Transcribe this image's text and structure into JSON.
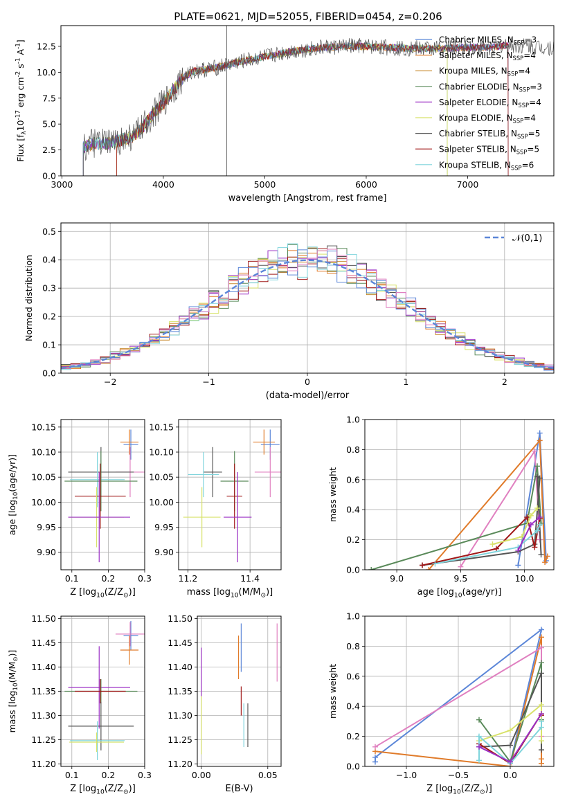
{
  "title": "PLATE=0621, MJD=52055, FIBERID=0454, z=0.206",
  "colors": {
    "chabrier_miles": "#5b86d8",
    "salpeter_miles": "#e07b2a",
    "kroupa_miles": "#c88a2e",
    "chabrier_elodie": "#5a8a5a",
    "salpeter_elodie": "#9b2fc4",
    "kroupa_elodie": "#d8e26a",
    "chabrier_stelib": "#555555",
    "salpeter_stelib": "#a01818",
    "kroupa_stelib": "#7fd4dc",
    "pink": "#e080c0",
    "gaussian": "#5b86d8"
  },
  "legend_entries": [
    {
      "name": "Chabrier MILES, N$_{SSP}$=3",
      "color": "#5b86d8"
    },
    {
      "name": "Salpeter MILES, N$_{SSP}$=4",
      "color": "#e07b2a"
    },
    {
      "name": "Kroupa MILES, N$_{SSP}$=4",
      "color": "#c88a2e"
    },
    {
      "name": "Chabrier ELODIE, N$_{SSP}$=3",
      "color": "#5a8a5a"
    },
    {
      "name": "Salpeter ELODIE, N$_{SSP}$=4",
      "color": "#9b2fc4"
    },
    {
      "name": "Kroupa ELODIE, N$_{SSP}$=4",
      "color": "#d8e26a"
    },
    {
      "name": "Chabrier STELIB, N$_{SSP}$=5",
      "color": "#555555"
    },
    {
      "name": "Salpeter STELIB, N$_{SSP}$=5",
      "color": "#a01818"
    },
    {
      "name": "Kroupa STELIB, N$_{SSP}$=6",
      "color": "#7fd4dc"
    }
  ],
  "chart_data": [
    {
      "id": "spectrum",
      "type": "line",
      "xlabel": "wavelength [Angstrom, rest frame]",
      "ylabel": "Flux [f$_\\lambda$10$^{-17}$ erg cm$^{-2}$ s$^{-1}$ A$^{-1}$]",
      "xlim": [
        2990,
        7850
      ],
      "ylim": [
        0,
        14.5
      ],
      "xticks": [
        3000,
        4000,
        5000,
        6000,
        7000
      ],
      "yticks": [
        0.0,
        2.5,
        5.0,
        7.5,
        10.0,
        12.5
      ],
      "continuum_wavelength": [
        3210,
        3300,
        3500,
        3700,
        3800,
        3900,
        4000,
        4100,
        4200,
        4300,
        4500,
        4700,
        5000,
        5200,
        5400,
        5600,
        5800,
        6000,
        6200,
        6400,
        6600,
        6800,
        7000,
        7200,
        7400,
        7600,
        7850
      ],
      "continuum_flux": [
        2.7,
        3.1,
        3.2,
        3.8,
        4.7,
        6.0,
        7.0,
        8.3,
        9.5,
        10.1,
        10.4,
        10.9,
        11.5,
        11.9,
        12.2,
        12.4,
        12.5,
        12.5,
        12.4,
        12.3,
        12.3,
        12.3,
        12.4,
        12.4,
        12.6,
        12.5,
        12.4
      ],
      "grid": false,
      "legend": "upper right"
    },
    {
      "id": "residuals",
      "type": "histogram",
      "xlabel": "(data-model)/error",
      "ylabel": "Normed distribution",
      "xlim": [
        -2.5,
        2.5
      ],
      "ylim": [
        0,
        0.53
      ],
      "xticks": [
        -2,
        -1,
        0,
        1,
        2
      ],
      "yticks": [
        0.0,
        0.1,
        0.2,
        0.3,
        0.4,
        0.5
      ],
      "legend_label": "$\\mathcal{N}(0,1)$",
      "grid": true,
      "bin_width": 0.1,
      "legend": "upper right"
    },
    {
      "id": "age_vs_Z",
      "type": "errorbar",
      "xlabel": "Z [log$_{10}$(Z/Z$_\\odot$)]",
      "ylabel": "age  [log$_{10}$(age/yr)]",
      "xlim": [
        0.07,
        0.3
      ],
      "ylim": [
        9.865,
        10.165
      ],
      "xticks": [
        0.1,
        0.2,
        0.3
      ],
      "yticks": [
        9.9,
        9.95,
        10.0,
        10.05,
        10.1,
        10.15
      ],
      "points": [
        {
          "x": 0.262,
          "y": 10.115,
          "xerr": 0.02,
          "yerr": 0.03,
          "color": "#5b86d8"
        },
        {
          "x": 0.258,
          "y": 10.12,
          "xerr": 0.025,
          "yerr": 0.025,
          "color": "#e07b2a"
        },
        {
          "x": 0.26,
          "y": 10.06,
          "xerr": 0.04,
          "yerr": 0.05,
          "color": "#e080c0"
        },
        {
          "x": 0.18,
          "y": 10.06,
          "xerr": 0.09,
          "yerr": 0.05,
          "color": "#555555"
        },
        {
          "x": 0.17,
          "y": 10.045,
          "xerr": 0.075,
          "yerr": 0.055,
          "color": "#7fd4dc"
        },
        {
          "x": 0.18,
          "y": 10.042,
          "xerr": 0.1,
          "yerr": 0.06,
          "color": "#5a8a5a"
        },
        {
          "x": 0.178,
          "y": 10.012,
          "xerr": 0.07,
          "yerr": 0.065,
          "color": "#a01818"
        },
        {
          "x": 0.168,
          "y": 9.97,
          "xerr": 0.075,
          "yerr": 0.06,
          "color": "#d8e26a"
        },
        {
          "x": 0.175,
          "y": 9.97,
          "xerr": 0.085,
          "yerr": 0.09,
          "color": "#9b2fc4"
        }
      ]
    },
    {
      "id": "age_vs_mass",
      "type": "errorbar",
      "xlabel": "mass [log$_{10}$(M/M$_\\odot$)]",
      "xlim": [
        11.17,
        11.5
      ],
      "ylim": [
        9.865,
        10.165
      ],
      "xticks": [
        11.2,
        11.4
      ],
      "yticks": [
        9.9,
        9.95,
        10.0,
        10.05,
        10.1,
        10.15
      ],
      "points": [
        {
          "x": 11.465,
          "y": 10.115,
          "xerr": 0.03,
          "yerr": 0.03,
          "color": "#5b86d8"
        },
        {
          "x": 11.445,
          "y": 10.12,
          "xerr": 0.035,
          "yerr": 0.025,
          "color": "#e07b2a"
        },
        {
          "x": 11.465,
          "y": 10.06,
          "xerr": 0.05,
          "yerr": 0.05,
          "color": "#e080c0"
        },
        {
          "x": 11.28,
          "y": 10.06,
          "xerr": 0.03,
          "yerr": 0.05,
          "color": "#555555"
        },
        {
          "x": 11.25,
          "y": 10.055,
          "xerr": 0.05,
          "yerr": 0.045,
          "color": "#7fd4dc"
        },
        {
          "x": 11.35,
          "y": 10.042,
          "xerr": 0.045,
          "yerr": 0.06,
          "color": "#5a8a5a"
        },
        {
          "x": 11.35,
          "y": 10.012,
          "xerr": 0.025,
          "yerr": 0.065,
          "color": "#a01818"
        },
        {
          "x": 11.245,
          "y": 9.97,
          "xerr": 0.06,
          "yerr": 0.06,
          "color": "#d8e26a"
        },
        {
          "x": 11.36,
          "y": 9.97,
          "xerr": 0.045,
          "yerr": 0.09,
          "color": "#9b2fc4"
        }
      ]
    },
    {
      "id": "weight_vs_age",
      "type": "line",
      "xlabel": "age  [log$_{10}$(age/yr)]",
      "ylabel": "mass weight",
      "xlim": [
        8.75,
        10.23
      ],
      "ylim": [
        0,
        1.0
      ],
      "xticks": [
        9.0,
        9.5,
        10.0
      ],
      "yticks": [
        0.0,
        0.2,
        0.4,
        0.6,
        0.8,
        1.0
      ],
      "series": [
        {
          "color": "#5b86d8",
          "x": [
            9.95,
            10.12,
            10.17
          ],
          "y": [
            0.03,
            0.91,
            0.06
          ]
        },
        {
          "color": "#e07b2a",
          "x": [
            9.25,
            10.12,
            10.16,
            10.18
          ],
          "y": [
            0.0,
            0.86,
            0.05,
            0.09
          ]
        },
        {
          "color": "#e080c0",
          "x": [
            9.5,
            10.08,
            10.12
          ],
          "y": [
            0.02,
            0.79,
            0.2
          ]
        },
        {
          "color": "#5a8a5a",
          "x": [
            8.8,
            10.02,
            10.1,
            10.13
          ],
          "y": [
            0.0,
            0.31,
            0.69,
            0.31
          ]
        },
        {
          "color": "#555555",
          "x": [
            9.2,
            9.95,
            10.08,
            10.12,
            10.1,
            10.13
          ],
          "y": [
            0.03,
            0.12,
            0.17,
            0.61,
            0.62,
            0.1
          ]
        },
        {
          "color": "#a01818",
          "x": [
            9.2,
            9.78,
            10.02,
            10.08,
            10.12
          ],
          "y": [
            0.03,
            0.14,
            0.35,
            0.15,
            0.34
          ]
        },
        {
          "color": "#d8e26a",
          "x": [
            9.75,
            9.98,
            10.05,
            10.1
          ],
          "y": [
            0.17,
            0.22,
            0.36,
            0.41
          ]
        },
        {
          "color": "#7fd4dc",
          "x": [
            9.3,
            9.95,
            10.1,
            10.12
          ],
          "y": [
            0.04,
            0.15,
            0.26,
            0.3
          ]
        },
        {
          "color": "#9b2fc4",
          "x": [
            9.95,
            10.05,
            10.12
          ],
          "y": [
            0.13,
            0.3,
            0.35
          ]
        }
      ],
      "grid": true
    },
    {
      "id": "mass_vs_Z",
      "type": "errorbar",
      "xlabel": "Z [log$_{10}$(Z/Z$_\\odot$)]",
      "ylabel": "mass [log$_{10}$(M/M$_\\odot$)]",
      "xlim": [
        0.07,
        0.3
      ],
      "ylim": [
        11.195,
        11.505
      ],
      "xticks": [
        0.1,
        0.2,
        0.3
      ],
      "yticks": [
        11.2,
        11.25,
        11.3,
        11.35,
        11.4,
        11.45,
        11.5
      ],
      "points": [
        {
          "x": 0.262,
          "y": 11.465,
          "xerr": 0.02,
          "yerr": 0.03,
          "color": "#5b86d8"
        },
        {
          "x": 0.258,
          "y": 11.435,
          "xerr": 0.025,
          "yerr": 0.03,
          "color": "#e07b2a"
        },
        {
          "x": 0.26,
          "y": 11.468,
          "xerr": 0.04,
          "yerr": 0.025,
          "color": "#e080c0"
        },
        {
          "x": 0.175,
          "y": 11.358,
          "xerr": 0.085,
          "yerr": 0.085,
          "color": "#9b2fc4"
        },
        {
          "x": 0.18,
          "y": 11.35,
          "xerr": 0.1,
          "yerr": 0.025,
          "color": "#5a8a5a"
        },
        {
          "x": 0.178,
          "y": 11.35,
          "xerr": 0.07,
          "yerr": 0.025,
          "color": "#a01818"
        },
        {
          "x": 0.18,
          "y": 11.278,
          "xerr": 0.09,
          "yerr": 0.05,
          "color": "#555555"
        },
        {
          "x": 0.17,
          "y": 11.248,
          "xerr": 0.075,
          "yerr": 0.04,
          "color": "#7fd4dc"
        },
        {
          "x": 0.168,
          "y": 11.245,
          "xerr": 0.075,
          "yerr": 0.02,
          "color": "#d8e26a"
        }
      ]
    },
    {
      "id": "mass_vs_ebv",
      "type": "errorbar",
      "xlabel": "E(B-V)",
      "xlim": [
        -0.003,
        0.06
      ],
      "ylim": [
        11.195,
        11.505
      ],
      "xticks": [
        0.0,
        0.05
      ],
      "yticks": [
        11.2,
        11.25,
        11.3,
        11.35,
        11.4,
        11.45,
        11.5
      ],
      "points": [
        {
          "x": 0.0,
          "y": 11.39,
          "xerr": 0.0,
          "yerr": 0.05,
          "color": "#9b2fc4"
        },
        {
          "x": 0.0,
          "y": 11.28,
          "xerr": 0.0,
          "yerr": 0.06,
          "color": "#d8e26a"
        },
        {
          "x": 0.03,
          "y": 11.44,
          "xerr": 0.0,
          "yerr": 0.05,
          "color": "#5b86d8"
        },
        {
          "x": 0.028,
          "y": 11.42,
          "xerr": 0.0,
          "yerr": 0.045,
          "color": "#e07b2a"
        },
        {
          "x": 0.057,
          "y": 11.43,
          "xerr": 0.0,
          "yerr": 0.06,
          "color": "#e080c0"
        },
        {
          "x": 0.032,
          "y": 11.28,
          "xerr": 0.0,
          "yerr": 0.045,
          "color": "#7fd4dc"
        },
        {
          "x": 0.03,
          "y": 11.33,
          "xerr": 0.0,
          "yerr": 0.03,
          "color": "#a01818"
        },
        {
          "x": 0.035,
          "y": 11.28,
          "xerr": 0.0,
          "yerr": 0.045,
          "color": "#555555"
        }
      ]
    },
    {
      "id": "weight_vs_Z",
      "type": "line",
      "xlabel": "Z [log$_{10}$(Z/Z$_\\odot$)]",
      "ylabel": "mass weight",
      "xlim": [
        -1.4,
        0.42
      ],
      "ylim": [
        0,
        1.0
      ],
      "xticks": [
        -1.0,
        -0.5,
        0.0
      ],
      "yticks": [
        0.0,
        0.2,
        0.4,
        0.6,
        0.8,
        1.0
      ],
      "series": [
        {
          "color": "#5b86d8",
          "x": [
            -1.3,
            -1.3,
            0.3,
            0.0
          ],
          "y": [
            0.03,
            0.06,
            0.91,
            0.02
          ]
        },
        {
          "color": "#e07b2a",
          "x": [
            -1.3,
            0.0,
            0.3,
            0.3,
            0.3
          ],
          "y": [
            0.1,
            0.0,
            0.86,
            0.05,
            0.02
          ]
        },
        {
          "color": "#e080c0",
          "x": [
            -1.3,
            0.3,
            0.3
          ],
          "y": [
            0.13,
            0.79,
            0.2
          ]
        },
        {
          "color": "#5a8a5a",
          "x": [
            -0.3,
            0.0,
            0.3,
            0.3
          ],
          "y": [
            0.31,
            0.03,
            0.69,
            0.31
          ]
        },
        {
          "color": "#555555",
          "x": [
            -0.3,
            0.0,
            0.3,
            0.3
          ],
          "y": [
            0.13,
            0.14,
            0.62,
            0.11
          ]
        },
        {
          "color": "#a01818",
          "x": [
            -0.3,
            0.0,
            0.3,
            0.3
          ],
          "y": [
            0.15,
            0.02,
            0.35,
            0.34
          ]
        },
        {
          "color": "#d8e26a",
          "x": [
            -0.3,
            0.0,
            0.3,
            0.3
          ],
          "y": [
            0.17,
            0.24,
            0.41,
            0.17
          ]
        },
        {
          "color": "#7fd4dc",
          "x": [
            -0.3,
            -0.3,
            0.0,
            0.3,
            0.3
          ],
          "y": [
            0.04,
            0.2,
            0.02,
            0.26,
            0.3
          ]
        },
        {
          "color": "#9b2fc4",
          "x": [
            -0.3,
            0.0,
            0.3
          ],
          "y": [
            0.13,
            0.03,
            0.35
          ]
        }
      ],
      "grid": true
    }
  ]
}
